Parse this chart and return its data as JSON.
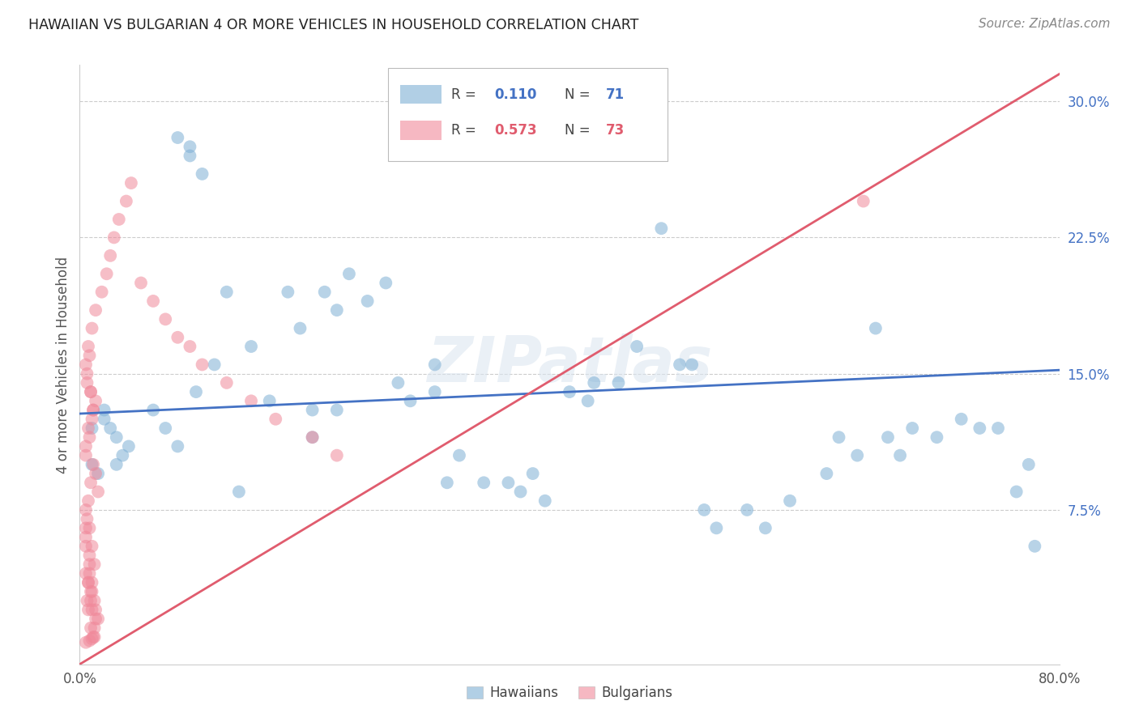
{
  "title": "HAWAIIAN VS BULGARIAN 4 OR MORE VEHICLES IN HOUSEHOLD CORRELATION CHART",
  "source": "Source: ZipAtlas.com",
  "ylabel": "4 or more Vehicles in Household",
  "x_min": 0.0,
  "x_max": 0.8,
  "y_min": -0.01,
  "y_max": 0.32,
  "yticks": [
    0.0,
    0.075,
    0.15,
    0.225,
    0.3
  ],
  "ytick_labels": [
    "",
    "7.5%",
    "15.0%",
    "22.5%",
    "30.0%"
  ],
  "xticks": [
    0.0,
    0.16,
    0.32,
    0.48,
    0.64,
    0.8
  ],
  "xtick_labels": [
    "0.0%",
    "",
    "",
    "",
    "",
    "80.0%"
  ],
  "hawaiians_R": 0.11,
  "hawaiians_N": 71,
  "bulgarians_R": 0.573,
  "bulgarians_N": 73,
  "hawaiians_color": "#7EB0D5",
  "bulgarians_color": "#F0899A",
  "hawaiians_line_color": "#4472C4",
  "bulgarians_line_color": "#E05C6E",
  "legend_label_hawaiians": "Hawaiians",
  "legend_label_bulgarians": "Bulgarians",
  "watermark": "ZIPatlas",
  "haw_line_x0": 0.0,
  "haw_line_y0": 0.128,
  "haw_line_x1": 0.8,
  "haw_line_y1": 0.152,
  "bul_line_x0": 0.0,
  "bul_line_y0": -0.01,
  "bul_line_x1": 0.8,
  "bul_line_y1": 0.315,
  "hawaiians_x": [
    0.02,
    0.035,
    0.01,
    0.03,
    0.025,
    0.04,
    0.02,
    0.015,
    0.03,
    0.01,
    0.06,
    0.07,
    0.08,
    0.09,
    0.1,
    0.095,
    0.11,
    0.12,
    0.14,
    0.155,
    0.18,
    0.19,
    0.2,
    0.21,
    0.22,
    0.235,
    0.25,
    0.26,
    0.27,
    0.29,
    0.31,
    0.33,
    0.35,
    0.36,
    0.37,
    0.38,
    0.4,
    0.415,
    0.42,
    0.44,
    0.455,
    0.475,
    0.49,
    0.5,
    0.51,
    0.52,
    0.545,
    0.56,
    0.58,
    0.61,
    0.62,
    0.635,
    0.65,
    0.66,
    0.67,
    0.68,
    0.7,
    0.72,
    0.735,
    0.75,
    0.765,
    0.775,
    0.78,
    0.09,
    0.17,
    0.29,
    0.3,
    0.08,
    0.19,
    0.21,
    0.13
  ],
  "hawaiians_y": [
    0.13,
    0.105,
    0.1,
    0.115,
    0.12,
    0.11,
    0.125,
    0.095,
    0.1,
    0.12,
    0.13,
    0.12,
    0.28,
    0.275,
    0.26,
    0.14,
    0.155,
    0.195,
    0.165,
    0.135,
    0.175,
    0.13,
    0.195,
    0.185,
    0.205,
    0.19,
    0.2,
    0.145,
    0.135,
    0.14,
    0.105,
    0.09,
    0.09,
    0.085,
    0.095,
    0.08,
    0.14,
    0.135,
    0.145,
    0.145,
    0.165,
    0.23,
    0.155,
    0.155,
    0.075,
    0.065,
    0.075,
    0.065,
    0.08,
    0.095,
    0.115,
    0.105,
    0.175,
    0.115,
    0.105,
    0.12,
    0.115,
    0.125,
    0.12,
    0.12,
    0.085,
    0.1,
    0.055,
    0.27,
    0.195,
    0.155,
    0.09,
    0.11,
    0.115,
    0.13,
    0.085
  ],
  "bulgarians_x": [
    0.005,
    0.008,
    0.01,
    0.012,
    0.015,
    0.005,
    0.008,
    0.01,
    0.007,
    0.009,
    0.011,
    0.013,
    0.006,
    0.009,
    0.012,
    0.005,
    0.007,
    0.01,
    0.013,
    0.008,
    0.005,
    0.006,
    0.007,
    0.009,
    0.011,
    0.013,
    0.015,
    0.005,
    0.008,
    0.01,
    0.012,
    0.007,
    0.009,
    0.005,
    0.008,
    0.01,
    0.013,
    0.006,
    0.009,
    0.011,
    0.005,
    0.007,
    0.01,
    0.013,
    0.008,
    0.006,
    0.009,
    0.011,
    0.007,
    0.005,
    0.018,
    0.022,
    0.025,
    0.028,
    0.032,
    0.038,
    0.042,
    0.05,
    0.06,
    0.07,
    0.08,
    0.09,
    0.1,
    0.12,
    0.14,
    0.16,
    0.19,
    0.21,
    0.64,
    0.005,
    0.008,
    0.01,
    0.012
  ],
  "bulgarians_y": [
    0.055,
    0.045,
    0.035,
    0.025,
    0.015,
    0.065,
    0.04,
    0.03,
    0.02,
    0.01,
    0.005,
    0.02,
    0.025,
    0.03,
    0.01,
    0.04,
    0.035,
    0.02,
    0.015,
    0.05,
    0.06,
    0.07,
    0.08,
    0.09,
    0.1,
    0.095,
    0.085,
    0.075,
    0.065,
    0.055,
    0.045,
    0.035,
    0.025,
    0.105,
    0.115,
    0.125,
    0.135,
    0.145,
    0.14,
    0.13,
    0.155,
    0.165,
    0.175,
    0.185,
    0.16,
    0.15,
    0.14,
    0.13,
    0.12,
    0.11,
    0.195,
    0.205,
    0.215,
    0.225,
    0.235,
    0.245,
    0.255,
    0.2,
    0.19,
    0.18,
    0.17,
    0.165,
    0.155,
    0.145,
    0.135,
    0.125,
    0.115,
    0.105,
    0.245,
    0.002,
    0.003,
    0.004,
    0.005
  ]
}
